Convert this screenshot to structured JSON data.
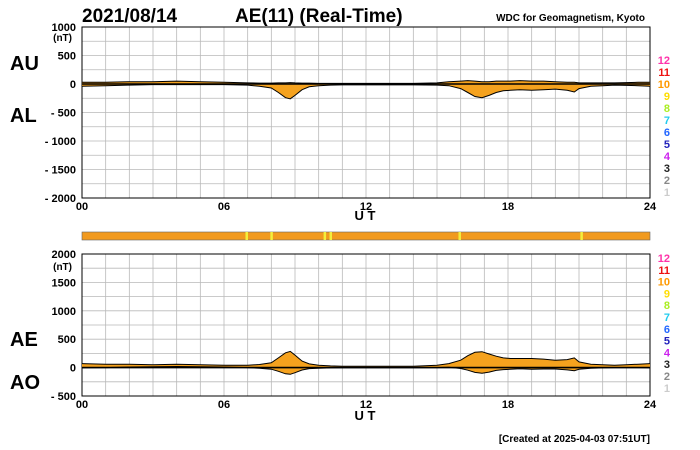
{
  "header": {
    "date": "2021/08/14",
    "title": "AE(11) (Real-Time)",
    "source": "WDC for Geomagnetism, Kyoto",
    "created": "[Created at 2025-04-03 07:51UT]"
  },
  "colors": {
    "fill": "#f5a21e",
    "line": "#000000",
    "grid": "#b9b9b9",
    "bar": "#f19a1f",
    "bar_mark": "#f2ef3c"
  },
  "legend": {
    "entries": [
      {
        "label": "12",
        "color": "#ff33aa"
      },
      {
        "label": "11",
        "color": "#ee1111"
      },
      {
        "label": "10",
        "color": "#ff9900"
      },
      {
        "label": "9",
        "color": "#ffdd00"
      },
      {
        "label": "8",
        "color": "#aaee22"
      },
      {
        "label": "7",
        "color": "#22ccee"
      },
      {
        "label": "6",
        "color": "#2266ff"
      },
      {
        "label": "5",
        "color": "#2222bb"
      },
      {
        "label": "4",
        "color": "#cc22ee"
      },
      {
        "label": "3",
        "color": "#222222"
      },
      {
        "label": "2",
        "color": "#888888"
      },
      {
        "label": "1",
        "color": "#cccccc"
      }
    ]
  },
  "chart_data": [
    {
      "type": "area",
      "panel": "AU/AL",
      "unit_label": "(nT)",
      "upper_label": "AU",
      "lower_label": "AL",
      "xlabel": "U T",
      "xlim": [
        0,
        24
      ],
      "ylim": [
        -2000,
        1000
      ],
      "x_ticks": [
        "00",
        "06",
        "12",
        "18",
        "24"
      ],
      "y_ticks": [
        "1000",
        "500",
        "0",
        "- 500",
        "- 1000",
        "- 1500",
        "- 2000"
      ],
      "y_tick_values": [
        1000,
        500,
        0,
        -500,
        -1000,
        -1500,
        -2000
      ],
      "x": [
        0,
        1,
        2,
        3,
        4,
        5,
        6,
        7,
        7.5,
        8,
        8.3,
        8.6,
        8.8,
        9.0,
        9.3,
        9.6,
        10,
        10.5,
        11,
        12,
        13,
        14,
        15,
        15.5,
        16,
        16.3,
        16.6,
        16.9,
        17.2,
        17.5,
        17.8,
        18.1,
        18.5,
        19,
        19.5,
        20,
        20.5,
        20.8,
        21,
        21.5,
        22,
        22.5,
        23,
        23.5,
        24
      ],
      "series": [
        {
          "name": "AU",
          "values": [
            30,
            30,
            40,
            40,
            50,
            40,
            30,
            20,
            15,
            15,
            20,
            20,
            25,
            20,
            15,
            15,
            10,
            10,
            10,
            10,
            10,
            10,
            20,
            40,
            50,
            60,
            50,
            40,
            40,
            50,
            50,
            50,
            60,
            50,
            50,
            40,
            30,
            30,
            20,
            20,
            20,
            20,
            25,
            30,
            30
          ]
        },
        {
          "name": "AL",
          "values": [
            -40,
            -30,
            -20,
            -10,
            -10,
            -10,
            -10,
            -20,
            -40,
            -70,
            -150,
            -240,
            -260,
            -200,
            -100,
            -50,
            -30,
            -20,
            -15,
            -15,
            -15,
            -15,
            -20,
            -30,
            -80,
            -150,
            -220,
            -240,
            -200,
            -150,
            -120,
            -110,
            -100,
            -110,
            -100,
            -90,
            -110,
            -140,
            -80,
            -40,
            -30,
            -20,
            -25,
            -30,
            -40
          ]
        }
      ]
    },
    {
      "type": "area",
      "panel": "AE/AO",
      "unit_label": "(nT)",
      "upper_label": "AE",
      "lower_label": "AO",
      "xlabel": "U T",
      "xlim": [
        0,
        24
      ],
      "ylim": [
        -500,
        2000
      ],
      "x_ticks": [
        "00",
        "06",
        "12",
        "18",
        "24"
      ],
      "y_ticks": [
        "2000",
        "1500",
        "1000",
        "500",
        "0",
        "- 500"
      ],
      "y_tick_values": [
        2000,
        1500,
        1000,
        500,
        0,
        -500
      ],
      "x": [
        0,
        1,
        2,
        3,
        4,
        5,
        6,
        7,
        7.5,
        8,
        8.3,
        8.6,
        8.8,
        9.0,
        9.3,
        9.6,
        10,
        10.5,
        11,
        12,
        13,
        14,
        15,
        15.5,
        16,
        16.3,
        16.6,
        16.9,
        17.2,
        17.5,
        17.8,
        18.1,
        18.5,
        19,
        19.5,
        20,
        20.5,
        20.8,
        21,
        21.5,
        22,
        22.5,
        23,
        23.5,
        24
      ],
      "series": [
        {
          "name": "AE",
          "values": [
            70,
            60,
            60,
            50,
            60,
            50,
            40,
            40,
            55,
            85,
            170,
            260,
            285,
            220,
            115,
            65,
            40,
            30,
            25,
            25,
            25,
            25,
            40,
            70,
            130,
            210,
            270,
            280,
            240,
            200,
            170,
            160,
            160,
            160,
            150,
            130,
            140,
            170,
            100,
            60,
            50,
            40,
            50,
            60,
            70
          ]
        },
        {
          "name": "AO",
          "values": [
            -5,
            0,
            10,
            15,
            20,
            15,
            10,
            0,
            -12,
            -28,
            -65,
            -110,
            -118,
            -90,
            -42,
            -18,
            -10,
            -5,
            -3,
            -3,
            -3,
            -3,
            0,
            5,
            -15,
            -45,
            -85,
            -100,
            -80,
            -50,
            -35,
            -30,
            -20,
            -30,
            -25,
            -25,
            -40,
            -55,
            -30,
            -10,
            -5,
            0,
            0,
            0,
            -5
          ]
        }
      ]
    }
  ],
  "index_bar": {
    "marks_ut": [
      6.95,
      8.0,
      10.25,
      10.5,
      15.95,
      21.1
    ]
  }
}
